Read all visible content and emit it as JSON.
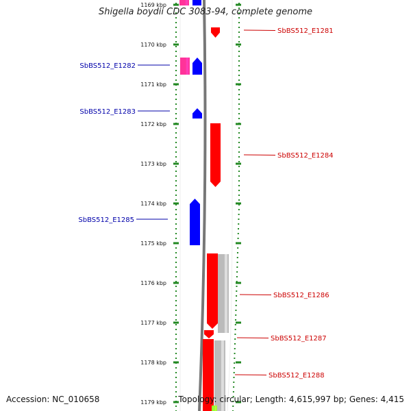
{
  "title": "Shigella boydii CDC 3083-94, complete genome",
  "footer": {
    "accession": "Accession: NC_010658",
    "summary": "Topology: circular; Length: 4,615,997 bp; Genes: 4,415"
  },
  "colors": {
    "forward_gene": "#ff0000",
    "reverse_gene": "#0000ff",
    "pink_gene": "#ff3399",
    "gray_gene": "#bbbbbb",
    "green_gene": "#99ff33",
    "tick_mark": "#228822",
    "backbone": "#777777",
    "label_forward": "#cc0000",
    "label_reverse": "#0000aa"
  },
  "ticks": [
    "1169 kbp",
    "1170 kbp",
    "1171 kbp",
    "1172 kbp",
    "1173 kbp",
    "1174 kbp",
    "1175 kbp",
    "1176 kbp",
    "1177 kbp",
    "1178 kbp",
    "1179 kbp"
  ],
  "genes": [
    {
      "label": "SbBS512_E1281",
      "strand": "forward"
    },
    {
      "label": "SbBS512_E1282",
      "strand": "reverse"
    },
    {
      "label": "SbBS512_E1283",
      "strand": "reverse"
    },
    {
      "label": "SbBS512_E1284",
      "strand": "forward"
    },
    {
      "label": "SbBS512_E1285",
      "strand": "reverse"
    },
    {
      "label": "SbBS512_E1286",
      "strand": "forward"
    },
    {
      "label": "SbBS512_E1287",
      "strand": "forward"
    },
    {
      "label": "SbBS512_E1288",
      "strand": "forward"
    }
  ]
}
